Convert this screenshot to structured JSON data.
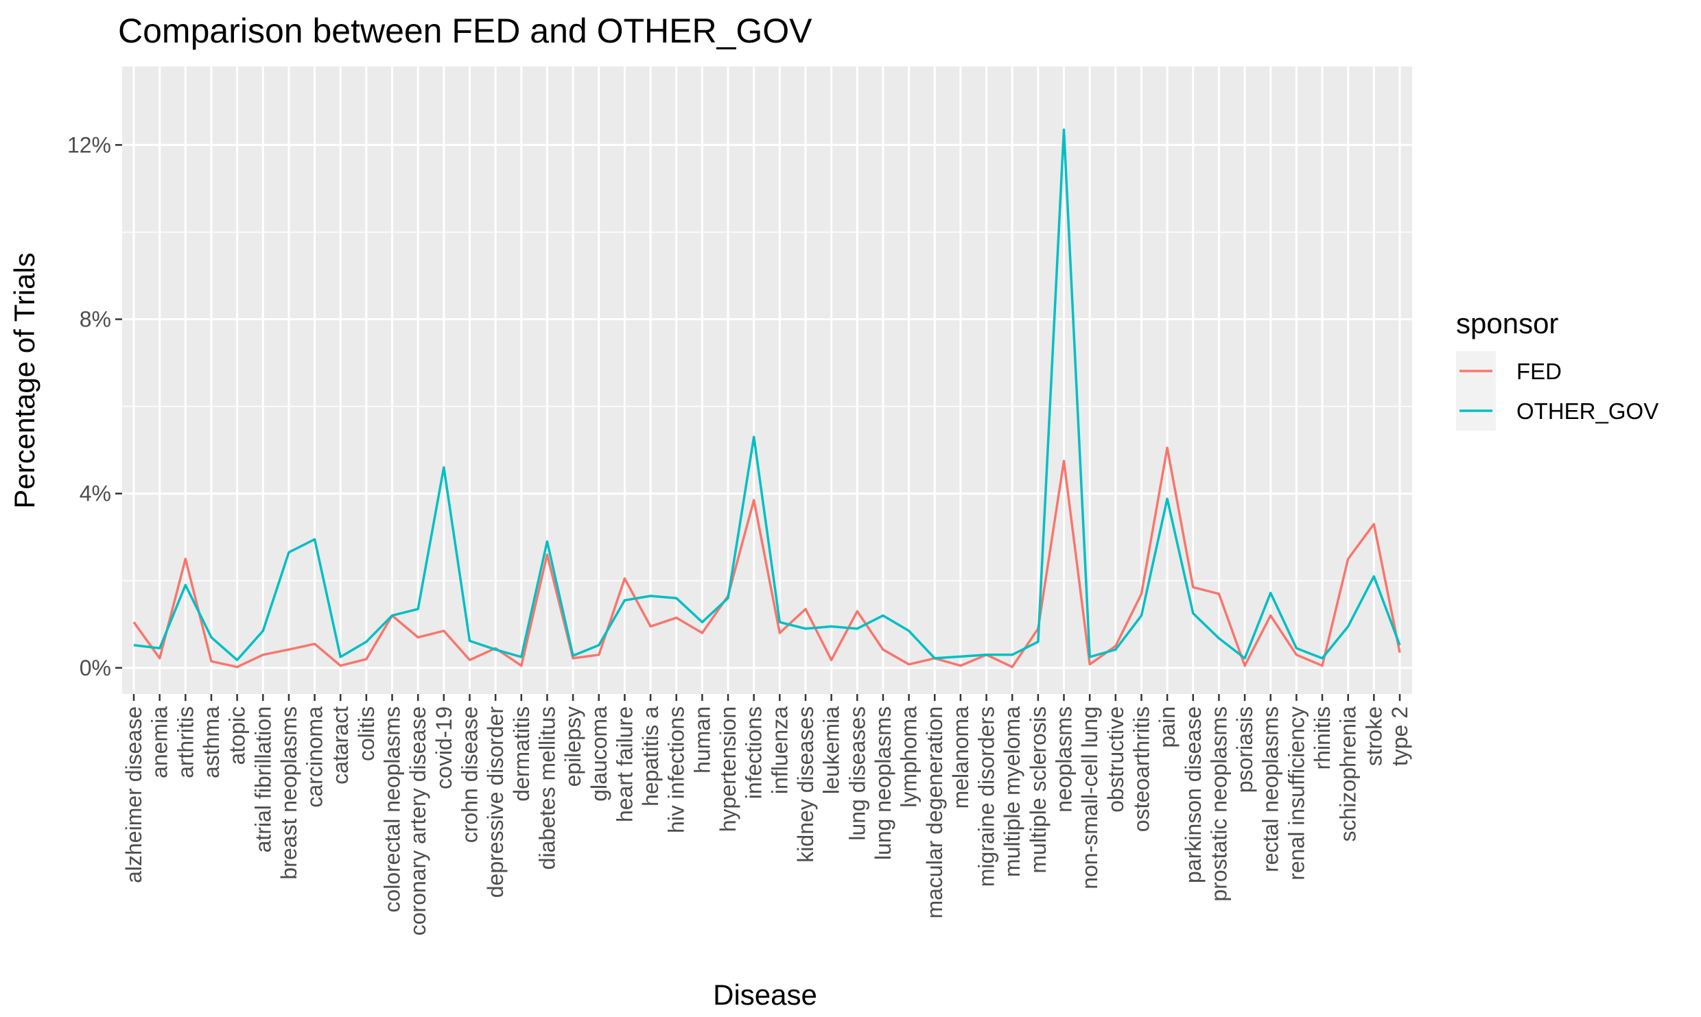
{
  "chart_data": {
    "type": "line",
    "title": "Comparison between FED and OTHER_GOV",
    "xlabel": "Disease",
    "ylabel": "Percentage of Trials",
    "ylim": [
      -0.6,
      13.8
    ],
    "yticks": [
      0,
      4,
      8,
      12
    ],
    "ytick_labels": [
      "0%",
      "4%",
      "8%",
      "12%"
    ],
    "grid": true,
    "legend": {
      "title": "sponsor",
      "position": "right"
    },
    "categories": [
      "alzheimer disease",
      "anemia",
      "arthritis",
      "asthma",
      "atopic",
      "atrial fibrillation",
      "breast neoplasms",
      "carcinoma",
      "cataract",
      "colitis",
      "colorectal neoplasms",
      "coronary artery disease",
      "covid-19",
      "crohn disease",
      "depressive disorder",
      "dermatitis",
      "diabetes mellitus",
      "epilepsy",
      "glaucoma",
      "heart failure",
      "hepatitis a",
      "hiv infections",
      "human",
      "hypertension",
      "infections",
      "influenza",
      "kidney diseases",
      "leukemia",
      "lung diseases",
      "lung neoplasms",
      "lymphoma",
      "macular degeneration",
      "melanoma",
      "migraine disorders",
      "multiple myeloma",
      "multiple sclerosis",
      "neoplasms",
      "non-small-cell lung",
      "obstructive",
      "osteoarthritis",
      "pain",
      "parkinson disease",
      "prostatic neoplasms",
      "psoriasis",
      "rectal neoplasms",
      "renal insufficiency",
      "rhinitis",
      "schizophrenia",
      "stroke",
      "type 2"
    ],
    "series": [
      {
        "name": "FED",
        "color": "#F8766D",
        "values": [
          1.05,
          0.22,
          2.5,
          0.15,
          0.02,
          0.3,
          0.42,
          0.55,
          0.05,
          0.2,
          1.2,
          0.7,
          0.85,
          0.18,
          0.45,
          0.05,
          2.6,
          0.22,
          0.3,
          2.05,
          0.95,
          1.15,
          0.8,
          1.65,
          3.85,
          0.8,
          1.35,
          0.18,
          1.3,
          0.42,
          0.08,
          0.22,
          0.05,
          0.3,
          0.02,
          0.9,
          4.75,
          0.08,
          0.5,
          1.7,
          5.05,
          1.85,
          1.7,
          0.05,
          1.2,
          0.3,
          0.05,
          2.5,
          3.3,
          0.35
        ]
      },
      {
        "name": "OTHER_GOV",
        "color": "#00BFC4",
        "values": [
          0.52,
          0.45,
          1.9,
          0.7,
          0.18,
          0.85,
          2.65,
          2.95,
          0.25,
          0.6,
          1.2,
          1.35,
          4.6,
          0.62,
          0.42,
          0.25,
          2.9,
          0.28,
          0.52,
          1.55,
          1.65,
          1.6,
          1.05,
          1.6,
          5.3,
          1.05,
          0.9,
          0.95,
          0.9,
          1.2,
          0.85,
          0.22,
          0.26,
          0.3,
          0.3,
          0.6,
          12.35,
          0.25,
          0.42,
          1.2,
          3.88,
          1.25,
          0.68,
          0.22,
          1.72,
          0.45,
          0.22,
          0.95,
          2.1,
          0.52
        ]
      }
    ]
  }
}
